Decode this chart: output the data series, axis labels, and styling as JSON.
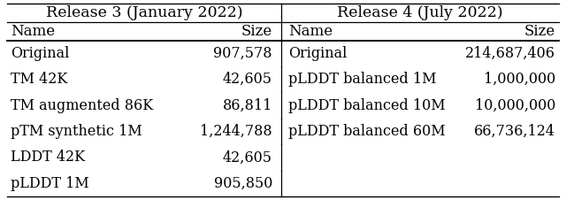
{
  "title_left": "Release 3 (January 2022)",
  "title_right": "Release 4 (July 2022)",
  "col_headers_left": [
    "Name",
    "Size"
  ],
  "col_headers_right": [
    "Name",
    "Size"
  ],
  "rows_left": [
    [
      "Original",
      "907,578"
    ],
    [
      "TM 42K",
      "42,605"
    ],
    [
      "TM augmented 86K",
      "86,811"
    ],
    [
      "pTM synthetic 1M",
      "1,244,788"
    ],
    [
      "LDDT 42K",
      "42,605"
    ],
    [
      "pLDDT 1M",
      "905,850"
    ]
  ],
  "rows_right": [
    [
      "Original",
      "214,687,406"
    ],
    [
      "pLDDT balanced 1M",
      "1,000,000"
    ],
    [
      "pLDDT balanced 10M",
      "10,000,000"
    ],
    [
      "pLDDT balanced 60M",
      "66,736,124"
    ],
    [
      "",
      ""
    ],
    [
      "",
      ""
    ]
  ],
  "bg_color": "#ffffff",
  "text_color": "#000000",
  "font_size": 11.5,
  "header_font_size": 12.0,
  "title_font_size": 12.5
}
